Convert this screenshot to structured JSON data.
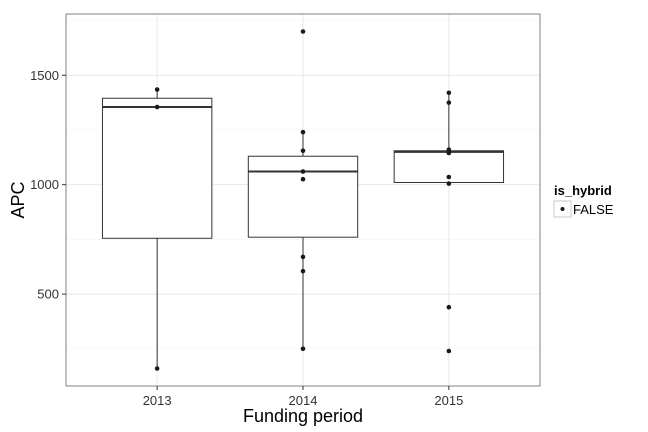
{
  "chart_data": {
    "type": "boxplot",
    "xlabel": "Funding period",
    "ylabel": "APC",
    "ylim": [
      80,
      1780
    ],
    "yticks": [
      500,
      1000,
      1500
    ],
    "grid": true,
    "legend": {
      "title": "is_hybrid",
      "entries": [
        "FALSE"
      ],
      "placement": "right"
    },
    "categories": [
      "2013",
      "2014",
      "2015"
    ],
    "boxes": [
      {
        "category": "2013",
        "lower_whisker": 160,
        "q1": 755,
        "median": 1355,
        "q3": 1395,
        "upper_whisker": 1435
      },
      {
        "category": "2014",
        "lower_whisker": 250,
        "q1": 760,
        "median": 1060,
        "q3": 1130,
        "upper_whisker": 1240
      },
      {
        "category": "2015",
        "lower_whisker": 1010,
        "q1": 1010,
        "median": 1150,
        "q3": 1155,
        "upper_whisker": 1420
      }
    ],
    "points": [
      {
        "category": "2013",
        "values": [
          1435,
          1355,
          160
        ]
      },
      {
        "category": "2014",
        "values": [
          1700,
          1240,
          1155,
          1060,
          1025,
          670,
          605,
          250
        ]
      },
      {
        "category": "2015",
        "values": [
          1420,
          1375,
          1160,
          1150,
          1145,
          1035,
          1005,
          440,
          240
        ]
      }
    ],
    "colors": {
      "panel_background": "#ffffff",
      "panel_border": "#808080",
      "grid_major": "#e8e8e8",
      "grid_minor": "#f4f4f4",
      "box_stroke": "#333333",
      "point": "#1a1a1a"
    }
  }
}
